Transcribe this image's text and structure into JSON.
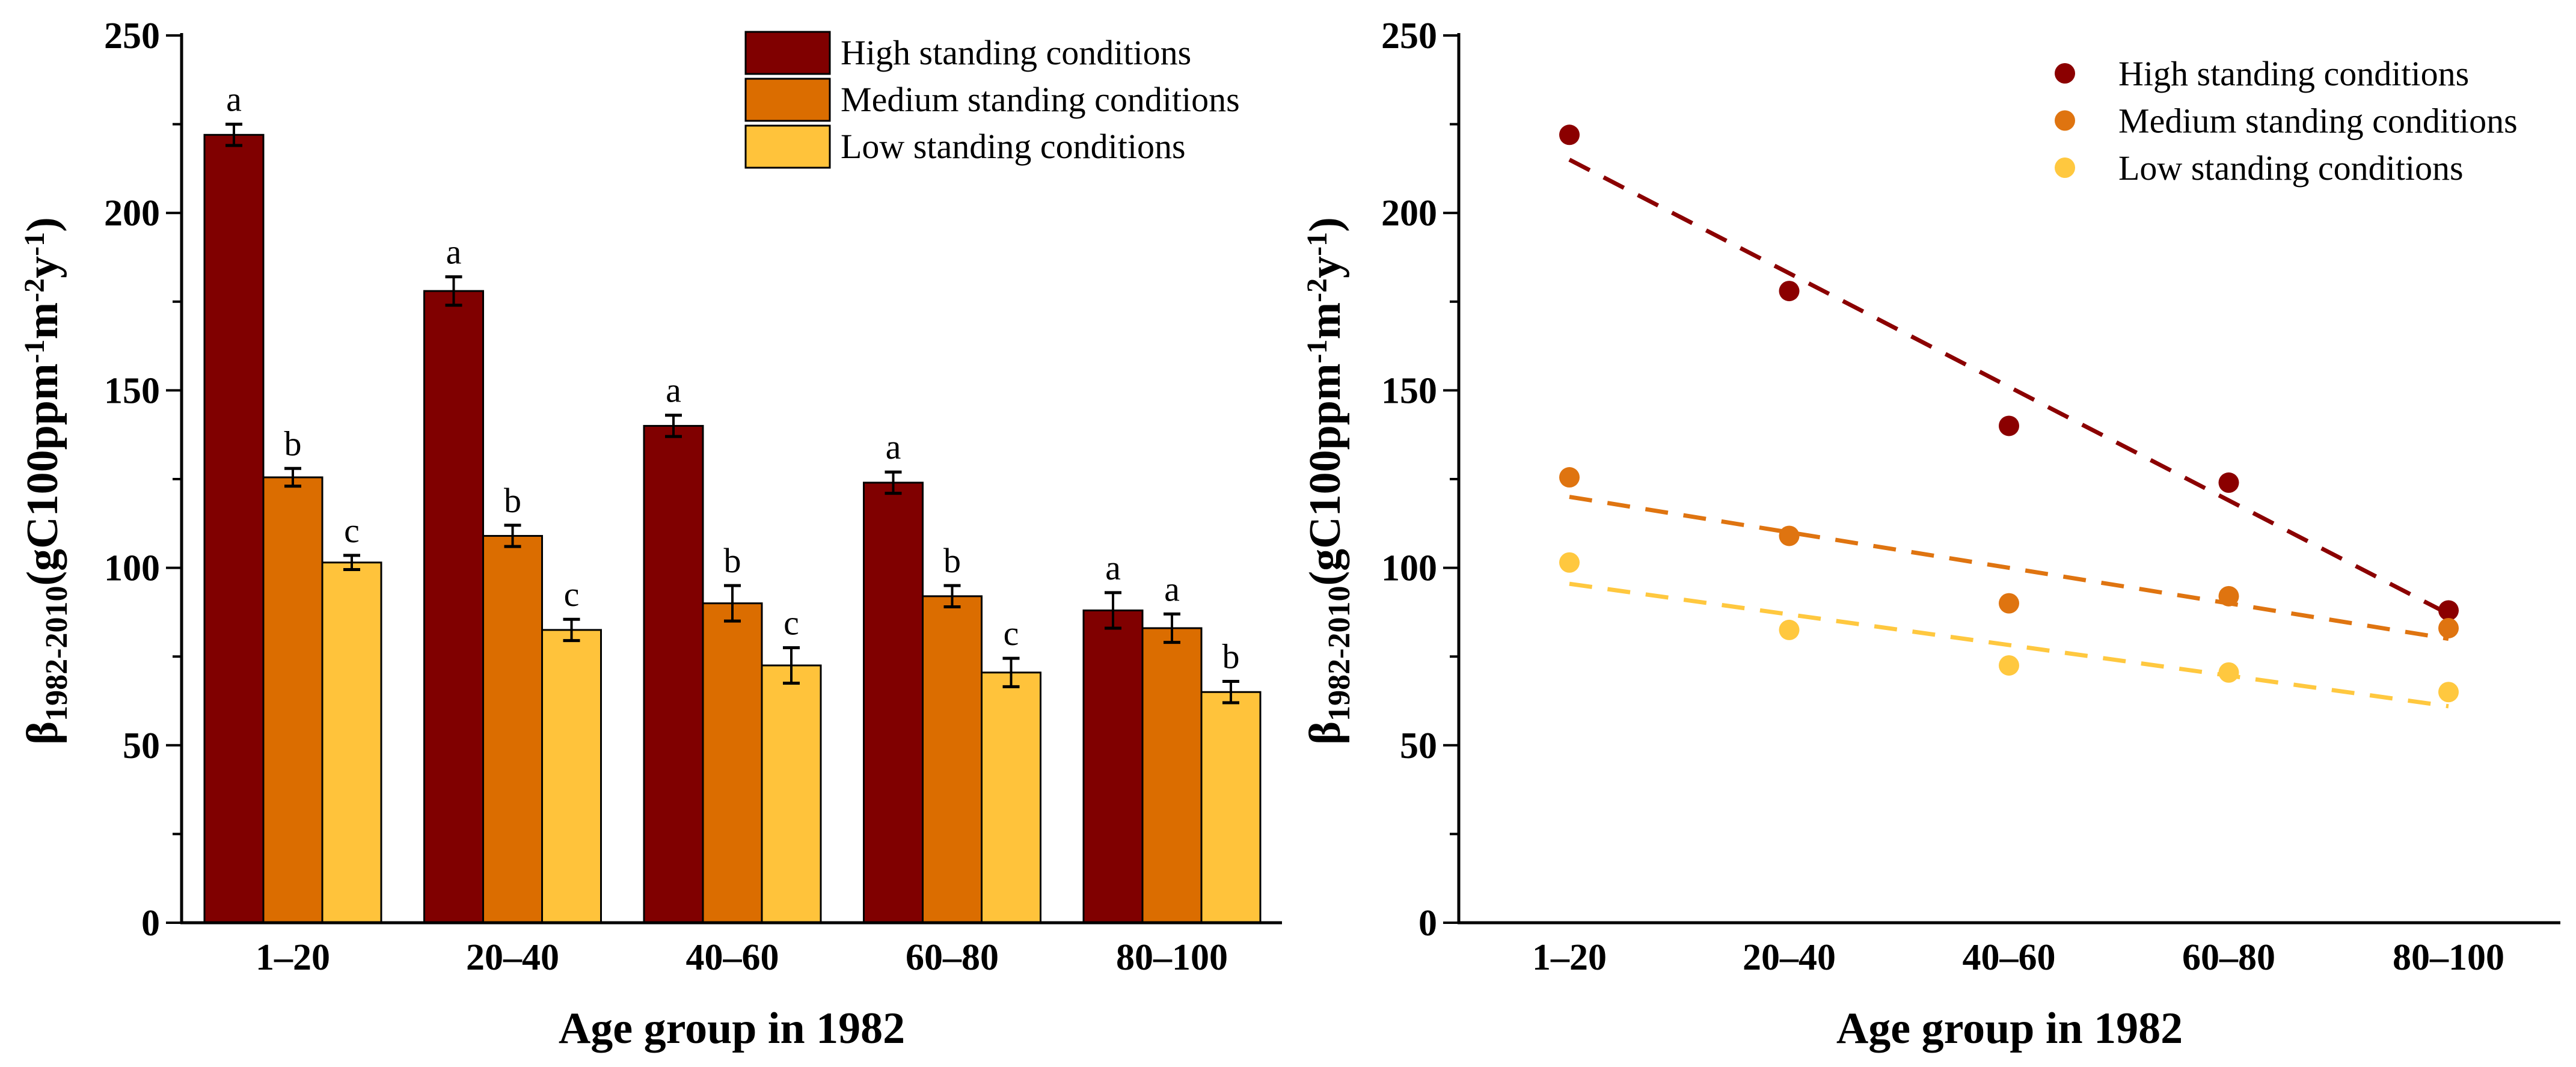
{
  "colors": {
    "high": "#800000",
    "medium": "#DB6D00",
    "low": "#FFC33B",
    "high_dot": "#8B0000",
    "medium_dot": "#DF7410",
    "low_dot": "#FFC83F"
  },
  "ylabel": {
    "symbol": "β",
    "sub": "1982-2010",
    "unit_a": "(gC100ppm",
    "exp1": "-1",
    "unit_b": "m",
    "exp2": "-2",
    "unit_c": "y",
    "exp3": "-1",
    "unit_d": ")"
  },
  "chart_data": [
    {
      "type": "bar",
      "title": "",
      "xlabel": "Age group in 1982",
      "ylabel": "β1982-2010(gC100ppm-1m-2y-1)",
      "ylim": [
        0,
        250
      ],
      "yticks": [
        "0",
        "50",
        "100",
        "150",
        "200",
        "250"
      ],
      "categories": [
        "1–20",
        "20–40",
        "40–60",
        "60–80",
        "80–100"
      ],
      "legend_position": "top-right",
      "series": [
        {
          "name": "High standing conditions",
          "values": [
            222,
            178,
            140,
            124,
            88
          ],
          "errors": [
            3,
            4,
            3,
            3,
            5
          ],
          "letters": [
            "a",
            "a",
            "a",
            "a",
            "a"
          ]
        },
        {
          "name": "Medium standing conditions",
          "values": [
            125.5,
            109,
            90,
            92,
            83
          ],
          "errors": [
            2.5,
            3,
            5,
            3,
            4
          ],
          "letters": [
            "b",
            "b",
            "b",
            "b",
            "a"
          ]
        },
        {
          "name": "Low standing conditions",
          "values": [
            101.5,
            82.5,
            72.5,
            70.5,
            65
          ],
          "errors": [
            2,
            3,
            5,
            4,
            3
          ],
          "letters": [
            "c",
            "c",
            "c",
            "c",
            "b"
          ]
        }
      ]
    },
    {
      "type": "scatter",
      "title": "",
      "xlabel": "Age group in 1982",
      "ylabel": "β1982-2010(gC100ppm-1m-2y-1)",
      "ylim": [
        0,
        250
      ],
      "yticks": [
        "0",
        "50",
        "100",
        "150",
        "200",
        "250"
      ],
      "categories": [
        "1–20",
        "20–40",
        "40–60",
        "60–80",
        "80–100"
      ],
      "legend_position": "top-right",
      "series": [
        {
          "name": "High standing conditions",
          "values": [
            222,
            178,
            140,
            124,
            88
          ],
          "trend": [
            215,
            87
          ]
        },
        {
          "name": "Medium standing conditions",
          "values": [
            125.5,
            109,
            90,
            92,
            83
          ],
          "trend": [
            120,
            80
          ]
        },
        {
          "name": "Low standing conditions",
          "values": [
            101.5,
            82.5,
            72.5,
            70.5,
            65
          ],
          "trend": [
            95.5,
            61
          ]
        }
      ]
    }
  ]
}
